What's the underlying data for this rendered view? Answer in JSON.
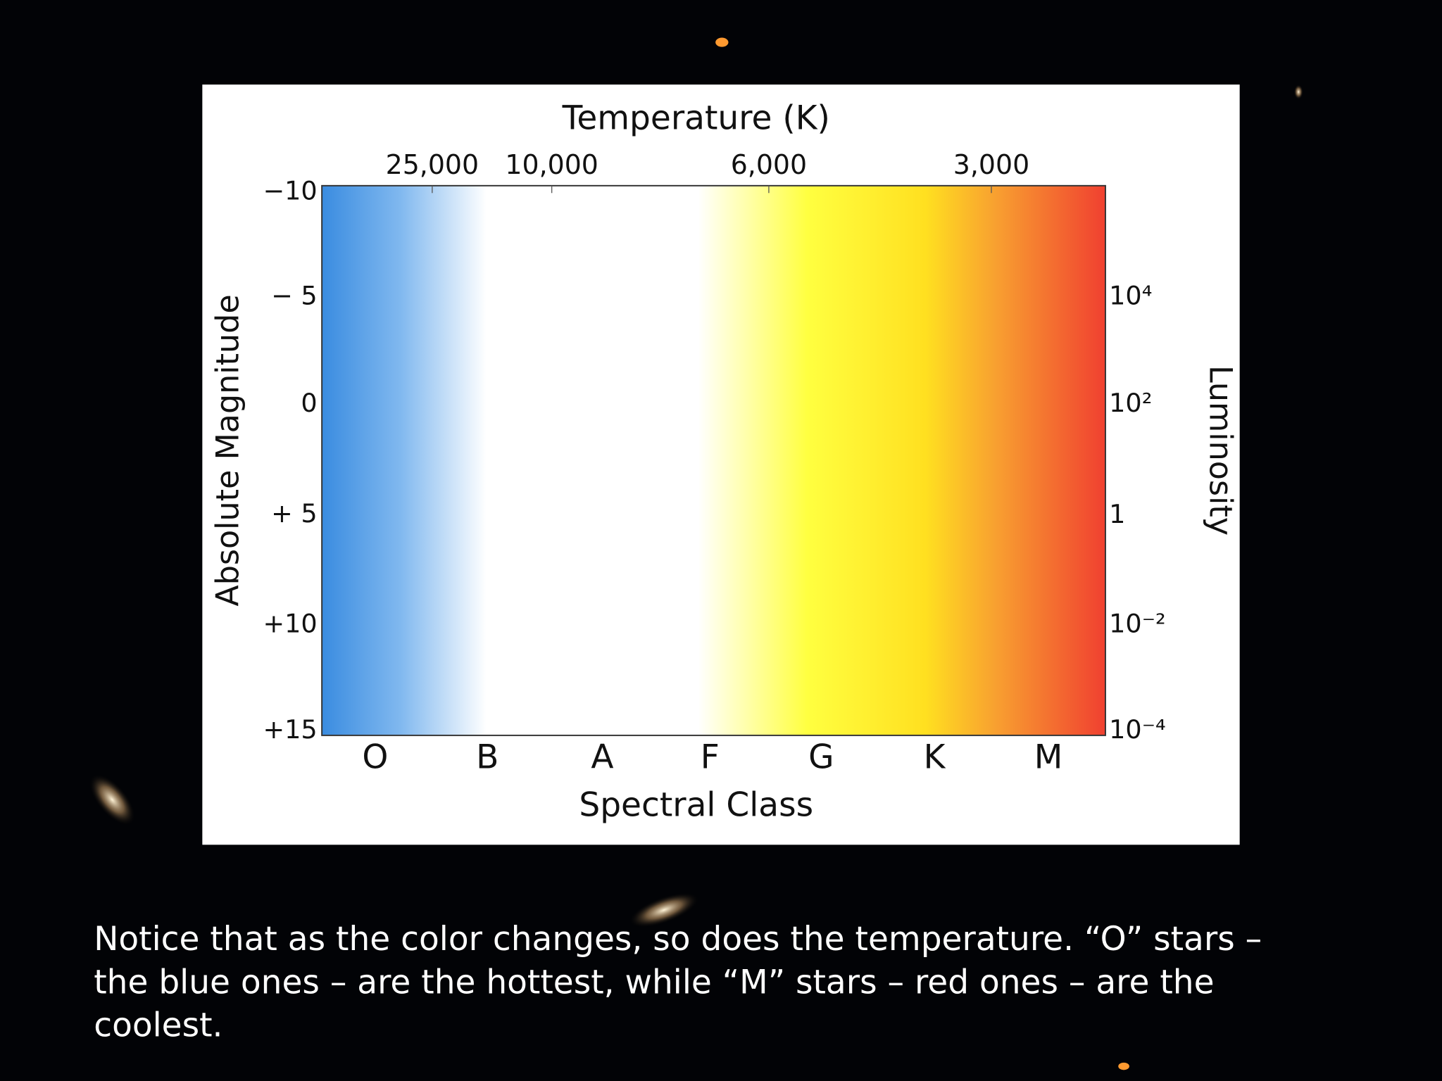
{
  "figure": {
    "top_axis_title": "Temperature (K)",
    "top_ticks": [
      "25,000",
      "10,000",
      "6,000",
      "3,000"
    ],
    "left_axis_title": "Absolute Magnitude",
    "left_ticks": [
      "−10",
      "− 5",
      "0",
      "+ 5",
      "+10",
      "+15"
    ],
    "right_axis_title": "Luminosity",
    "right_ticks": [
      "10⁴",
      "10²",
      "1",
      "10⁻²",
      "10⁻⁴"
    ],
    "bottom_ticks": [
      "O",
      "B",
      "A",
      "F",
      "G",
      "K",
      "M"
    ],
    "bottom_axis_title": "Spectral Class"
  },
  "caption": {
    "lines": [
      "Notice that as the color changes, so does the temperature. “O” stars –",
      "the blue ones – are the hottest, while “M” stars – red ones – are the",
      "coolest."
    ]
  }
}
